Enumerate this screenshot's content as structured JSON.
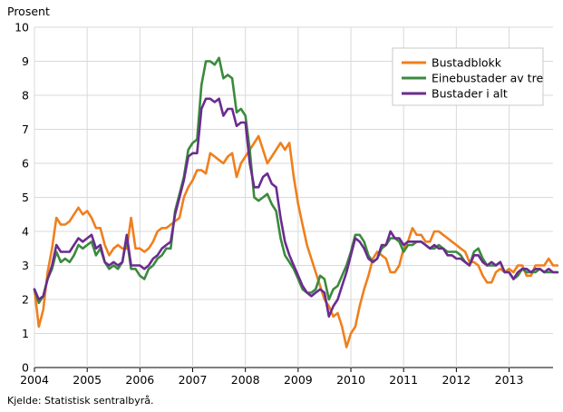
{
  "chart_data": {
    "type": "line",
    "ylabel": "Prosent",
    "source": "Kjelde: Statistisk sentralbyrå.",
    "ylim": [
      0,
      10
    ],
    "yticks": [
      "0",
      "1",
      "2",
      "3",
      "4",
      "5",
      "6",
      "7",
      "8",
      "9",
      "10"
    ],
    "xlim": [
      2004.0,
      2013.833
    ],
    "xticks": [
      "2004",
      "2005",
      "2006",
      "2007",
      "2008",
      "2009",
      "2010",
      "2011",
      "2012",
      "2013"
    ],
    "grid": true,
    "legend_position": "top-right",
    "x_start": "2004-01",
    "x_step": "month",
    "series": [
      {
        "name": "Bustadblokk",
        "color": "#f07f1d",
        "values": [
          2.3,
          1.2,
          1.7,
          2.8,
          3.5,
          4.4,
          4.2,
          4.2,
          4.3,
          4.5,
          4.7,
          4.5,
          4.6,
          4.4,
          4.1,
          4.1,
          3.6,
          3.3,
          3.5,
          3.6,
          3.5,
          3.5,
          4.4,
          3.5,
          3.5,
          3.4,
          3.5,
          3.7,
          4.0,
          4.1,
          4.1,
          4.2,
          4.3,
          4.4,
          5.0,
          5.3,
          5.5,
          5.8,
          5.8,
          5.7,
          6.3,
          6.2,
          6.1,
          6.0,
          6.2,
          6.3,
          5.6,
          6.0,
          6.2,
          6.4,
          6.6,
          6.8,
          6.4,
          6.0,
          6.2,
          6.4,
          6.6,
          6.4,
          6.6,
          5.6,
          4.8,
          4.2,
          3.6,
          3.2,
          2.8,
          2.4,
          2.0,
          1.8,
          1.5,
          1.6,
          1.2,
          0.6,
          1.0,
          1.2,
          1.8,
          2.3,
          2.7,
          3.2,
          3.4,
          3.3,
          3.2,
          2.8,
          2.8,
          3.0,
          3.5,
          3.7,
          4.1,
          3.9,
          3.9,
          3.7,
          3.7,
          4.0,
          4.0,
          3.9,
          3.8,
          3.7,
          3.6,
          3.5,
          3.4,
          3.1,
          3.1,
          3.0,
          2.7,
          2.5,
          2.5,
          2.8,
          2.9,
          2.8,
          2.9,
          2.8,
          3.0,
          3.0,
          2.7,
          2.7,
          3.0,
          3.0,
          3.0,
          3.2,
          3.0,
          3.0
        ]
      },
      {
        "name": "Einebustader av tre",
        "color": "#3b8a3e",
        "values": [
          2.3,
          1.9,
          2.1,
          2.6,
          2.9,
          3.4,
          3.1,
          3.2,
          3.1,
          3.3,
          3.6,
          3.5,
          3.6,
          3.7,
          3.3,
          3.5,
          3.1,
          2.9,
          3.0,
          2.9,
          3.1,
          3.8,
          2.9,
          2.9,
          2.7,
          2.6,
          2.9,
          3.0,
          3.2,
          3.3,
          3.5,
          3.5,
          4.6,
          5.1,
          5.6,
          6.4,
          6.6,
          6.7,
          8.3,
          9.0,
          9.0,
          8.9,
          9.1,
          8.5,
          8.6,
          8.5,
          7.5,
          7.6,
          7.4,
          6.4,
          5.0,
          4.9,
          5.0,
          5.1,
          4.8,
          4.6,
          3.8,
          3.3,
          3.1,
          2.9,
          2.6,
          2.3,
          2.2,
          2.2,
          2.3,
          2.7,
          2.6,
          2.0,
          2.3,
          2.4,
          2.7,
          3.0,
          3.4,
          3.9,
          3.9,
          3.7,
          3.3,
          3.1,
          3.2,
          3.5,
          3.6,
          3.8,
          3.8,
          3.7,
          3.4,
          3.6,
          3.6,
          3.7,
          3.7,
          3.6,
          3.5,
          3.5,
          3.6,
          3.5,
          3.4,
          3.4,
          3.4,
          3.3,
          3.1,
          3.0,
          3.4,
          3.5,
          3.2,
          3.0,
          3.0,
          3.0,
          3.1,
          2.8,
          2.8,
          2.6,
          2.7,
          2.9,
          2.8,
          2.8,
          2.8,
          2.9,
          2.8,
          2.8,
          2.8,
          2.8
        ]
      },
      {
        "name": "Bustader i alt",
        "color": "#6a2c8f",
        "values": [
          2.3,
          2.0,
          2.1,
          2.6,
          3.0,
          3.6,
          3.4,
          3.4,
          3.4,
          3.6,
          3.8,
          3.7,
          3.8,
          3.9,
          3.5,
          3.6,
          3.1,
          3.0,
          3.1,
          3.0,
          3.1,
          3.9,
          3.0,
          3.0,
          3.0,
          2.9,
          3.0,
          3.2,
          3.3,
          3.5,
          3.6,
          3.7,
          4.5,
          5.0,
          5.5,
          6.2,
          6.3,
          6.3,
          7.6,
          7.9,
          7.9,
          7.8,
          7.9,
          7.4,
          7.6,
          7.6,
          7.1,
          7.2,
          7.2,
          6.0,
          5.3,
          5.3,
          5.6,
          5.7,
          5.4,
          5.3,
          4.4,
          3.7,
          3.3,
          3.0,
          2.7,
          2.4,
          2.2,
          2.1,
          2.2,
          2.3,
          2.2,
          1.5,
          1.8,
          2.0,
          2.4,
          2.8,
          3.3,
          3.8,
          3.7,
          3.5,
          3.2,
          3.1,
          3.2,
          3.6,
          3.6,
          4.0,
          3.8,
          3.8,
          3.6,
          3.7,
          3.7,
          3.7,
          3.7,
          3.6,
          3.5,
          3.6,
          3.5,
          3.5,
          3.3,
          3.3,
          3.2,
          3.2,
          3.1,
          3.0,
          3.3,
          3.3,
          3.1,
          3.0,
          3.1,
          3.0,
          3.1,
          2.8,
          2.8,
          2.6,
          2.8,
          2.9,
          2.9,
          2.8,
          2.9,
          2.9,
          2.8,
          2.9,
          2.8,
          2.8
        ]
      }
    ]
  }
}
